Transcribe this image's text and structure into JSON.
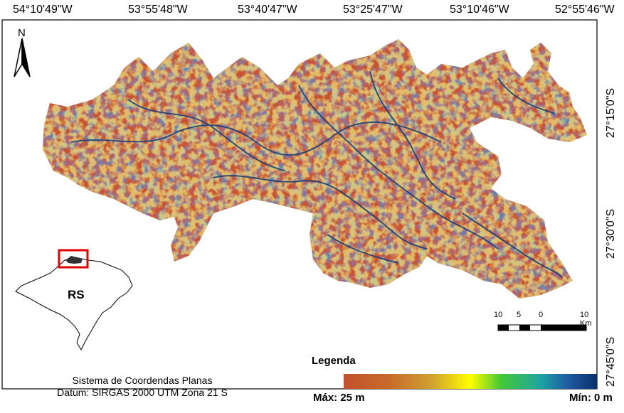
{
  "longitude_labels": [
    "54°10'49\"W",
    "53°55'48\"W",
    "53°40'47\"W",
    "53°25'47\"W",
    "53°10'46\"W",
    "52°55'46\"W"
  ],
  "latitude_labels": [
    "27°15'0\"S",
    "27°30'0\"S",
    "27°45'0\"S"
  ],
  "north_label": "N",
  "inset_label": "RS",
  "datum": {
    "line1": "Sistema de Coordendas Planas",
    "line2": "Datum: SIRGAS 2000 UTM Zona 21 S"
  },
  "scale": {
    "ticks": [
      "10",
      "5",
      "0",
      "10 Km"
    ]
  },
  "legend": {
    "title": "Legenda",
    "max_label": "Máx: 25 m",
    "min_label": "Mín: 0 m",
    "colors": [
      "#c4502d",
      "#d1a12f",
      "#ffff00",
      "#46c935",
      "#1da3a4",
      "#0a2f6b"
    ]
  },
  "map_colors": {
    "terrain": "#c75230",
    "drainage": "#123e78",
    "highlight": "#e2d72c",
    "inset_box": "#e00000"
  }
}
